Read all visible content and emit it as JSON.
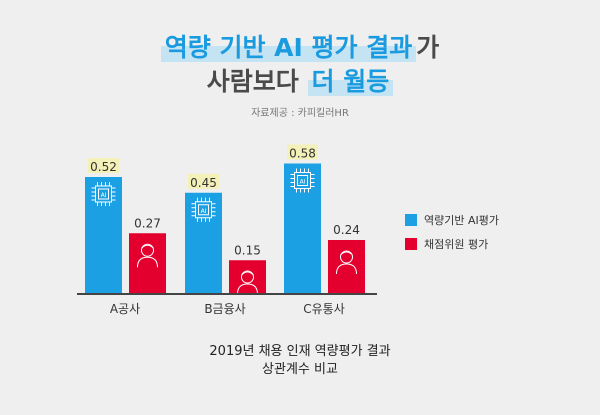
{
  "title": {
    "line1_highlight": "역량 기반 AI 평가 결과",
    "line1_rest": "가",
    "line2_plain": "사람보다",
    "line2_highlight": "더 월등"
  },
  "source": "자료제공 : 카피킬러HR",
  "colors": {
    "ai": "#1ba1e3",
    "human": "#e3002e",
    "label_bg": "#f3f0b8"
  },
  "chart_data": {
    "type": "bar",
    "categories": [
      "A공사",
      "B금융사",
      "C유통사"
    ],
    "series": [
      {
        "name": "역량기반 AI평가",
        "values": [
          0.52,
          0.45,
          0.58
        ],
        "labels": [
          "0.52",
          "0.45",
          "0.58"
        ]
      },
      {
        "name": "채점위원 평가",
        "values": [
          0.27,
          0.15,
          0.24
        ],
        "labels": [
          "0.27",
          "0.15",
          "0.24"
        ]
      }
    ],
    "ylim": [
      0,
      0.6
    ],
    "legend": "right",
    "title": "2019년 채용 인재 역량평가 결과",
    "subtitle": "상관계수 비교"
  }
}
